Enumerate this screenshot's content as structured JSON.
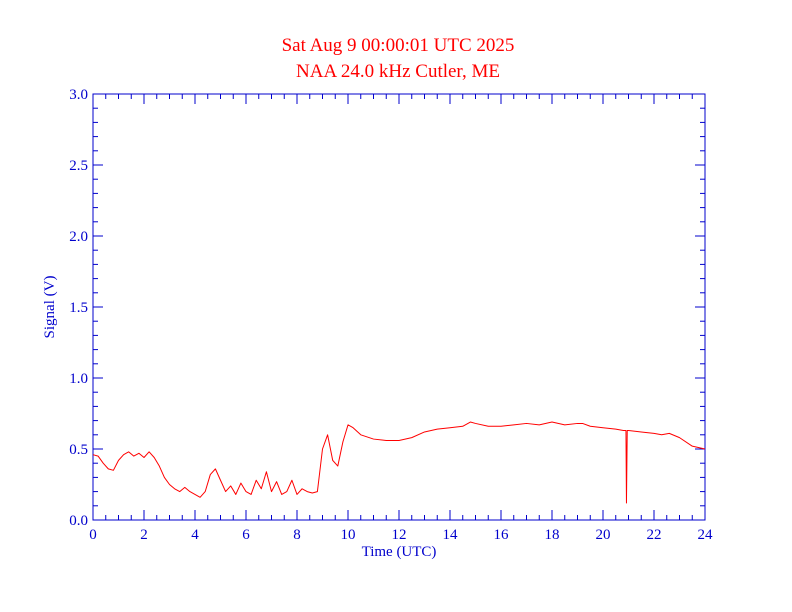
{
  "chart_data": {
    "type": "line",
    "title": "Sat Aug 9 00:00:01 UTC 2025",
    "subtitle": "NAA 24.0 kHz Cutler, ME",
    "xlabel": "Time (UTC)",
    "ylabel": "Signal (V)",
    "xlim": [
      0,
      24
    ],
    "ylim": [
      0,
      3.0
    ],
    "x_ticks": [
      0,
      2,
      4,
      6,
      8,
      10,
      12,
      14,
      16,
      18,
      20,
      22,
      24
    ],
    "x_tick_labels": [
      "0",
      "2",
      "4",
      "6",
      "8",
      "10",
      "12",
      "14",
      "16",
      "18",
      "20",
      "22",
      "24"
    ],
    "y_ticks": [
      0,
      0.5,
      1.0,
      1.5,
      2.0,
      2.5,
      3.0
    ],
    "y_tick_labels": [
      "0.0",
      "0.5",
      "1.0",
      "1.5",
      "2.0",
      "2.5",
      "3.0"
    ],
    "grid": false,
    "series": [
      {
        "color": "#ff0000",
        "x": [
          0,
          0.2,
          0.4,
          0.6,
          0.8,
          1.0,
          1.2,
          1.4,
          1.6,
          1.8,
          2.0,
          2.2,
          2.4,
          2.6,
          2.8,
          3.0,
          3.2,
          3.4,
          3.6,
          3.8,
          4.0,
          4.2,
          4.4,
          4.6,
          4.8,
          5.0,
          5.2,
          5.4,
          5.6,
          5.8,
          6.0,
          6.2,
          6.4,
          6.6,
          6.8,
          7.0,
          7.2,
          7.4,
          7.6,
          7.8,
          8.0,
          8.2,
          8.4,
          8.6,
          8.8,
          9.0,
          9.2,
          9.4,
          9.6,
          9.8,
          10.0,
          10.2,
          10.5,
          11.0,
          11.5,
          12.0,
          12.5,
          13.0,
          13.5,
          14.0,
          14.5,
          14.8,
          15.0,
          15.5,
          16.0,
          16.5,
          17.0,
          17.5,
          18.0,
          18.5,
          19.0,
          19.2,
          19.5,
          20.0,
          20.5,
          20.8,
          20.9,
          20.92,
          20.95,
          21.0,
          21.5,
          22.0,
          22.3,
          22.6,
          23.0,
          23.5,
          24.0
        ],
        "values": [
          0.46,
          0.45,
          0.4,
          0.36,
          0.35,
          0.42,
          0.46,
          0.48,
          0.45,
          0.47,
          0.44,
          0.48,
          0.44,
          0.38,
          0.3,
          0.25,
          0.22,
          0.2,
          0.23,
          0.2,
          0.18,
          0.16,
          0.2,
          0.32,
          0.36,
          0.28,
          0.2,
          0.24,
          0.18,
          0.26,
          0.2,
          0.18,
          0.28,
          0.22,
          0.34,
          0.2,
          0.27,
          0.18,
          0.2,
          0.28,
          0.18,
          0.22,
          0.2,
          0.19,
          0.2,
          0.5,
          0.6,
          0.42,
          0.38,
          0.55,
          0.67,
          0.65,
          0.6,
          0.57,
          0.56,
          0.56,
          0.58,
          0.62,
          0.64,
          0.65,
          0.66,
          0.69,
          0.68,
          0.66,
          0.66,
          0.67,
          0.68,
          0.67,
          0.69,
          0.67,
          0.68,
          0.68,
          0.66,
          0.65,
          0.64,
          0.63,
          0.63,
          0.12,
          0.63,
          0.63,
          0.62,
          0.61,
          0.6,
          0.61,
          0.58,
          0.52,
          0.5
        ]
      }
    ]
  },
  "colors": {
    "title": "#ff0000",
    "axis": "#0000cc",
    "series": "#ff0000",
    "background": "#ffffff"
  }
}
